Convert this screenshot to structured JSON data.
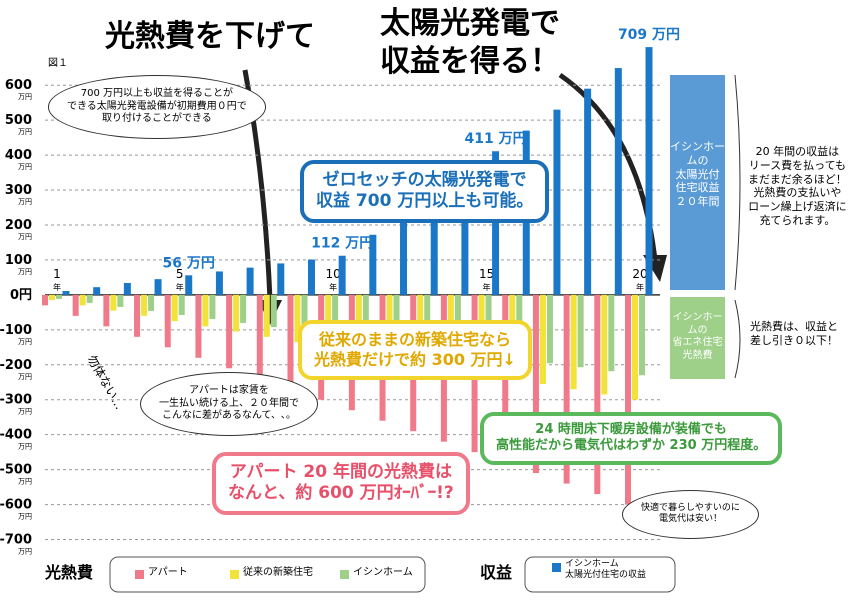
{
  "chart_data": {
    "type": "bar",
    "figure_label": "図１",
    "categories": [
      "1",
      null,
      null,
      null,
      "5",
      null,
      null,
      null,
      null,
      "10",
      null,
      null,
      null,
      null,
      "15",
      null,
      null,
      null,
      null,
      "20"
    ],
    "x_unit": "年",
    "y_unit": "万円",
    "series": [
      {
        "name": "アパート",
        "color": "#f07a8a",
        "values": [
          -30,
          -60,
          -90,
          -120,
          -150,
          -180,
          -210,
          -240,
          -270,
          -300,
          -330,
          -360,
          -390,
          -420,
          -450,
          -480,
          -510,
          -540,
          -570,
          -600
        ]
      },
      {
        "name": "従来の新築住宅",
        "color": "#f2e33a",
        "values": [
          -15,
          -30,
          -45,
          -60,
          -75,
          -90,
          -105,
          -120,
          -135,
          -150,
          -165,
          -180,
          -195,
          -210,
          -225,
          -240,
          -255,
          -270,
          -285,
          -300
        ]
      },
      {
        "name": "イシンホーム",
        "color": "#9fd08a",
        "values": [
          -11.5,
          -23,
          -34.5,
          -46,
          -57.5,
          -69,
          -80.5,
          -92,
          -103.5,
          -115,
          -126.5,
          -138,
          -149.5,
          -161,
          -172.5,
          -184,
          -195.5,
          -207,
          -218.5,
          -230
        ]
      },
      {
        "name": "イシンホーム\n太陽光付住宅の収益",
        "color": "#1b78c8",
        "values": [
          11,
          22,
          34,
          45,
          56,
          67,
          78,
          90,
          101,
          112,
          172,
          231,
          291,
          351,
          411,
          470,
          530,
          590,
          649,
          709
        ],
        "value_labels": [
          null,
          null,
          null,
          null,
          "56 万円",
          null,
          null,
          null,
          null,
          "112 万円",
          null,
          null,
          null,
          null,
          "411 万円",
          null,
          null,
          null,
          null,
          "709 万円"
        ]
      }
    ],
    "ylim": [
      -730,
      715
    ],
    "yticks": [
      -700,
      -600,
      -500,
      -400,
      -300,
      -200,
      -100,
      {
        "value": 0,
        "label": "0円"
      },
      100,
      200,
      300,
      400,
      500,
      600
    ],
    "grid": true,
    "legend_groups": {
      "cost": "光熱費",
      "revenue": "収益"
    },
    "annotations": {
      "headline1": "光熱費を下げて",
      "headline2": "太陽光発電で\n収益を得る！",
      "bubble_teacher": "700 万円以上も収益を得ることが\nできる太陽光発電設備が初期費用０円で\n取り付けることができる",
      "callout_blue": "ゼロセッチの太陽光発電で\n収益 700 万円以上も可能。",
      "callout_yellow": "従来のままの新築住宅なら\n光熱費だけで約 300 万円↓",
      "callout_green": "24 時間床下暖房設備が装備でも\n高性能だから電気代はわずか 230 万円程度。",
      "callout_pink": "アパート 20 年間の光熱費は\nなんと、約 600 万円ｵｰﾊﾞｰ!?",
      "bubble_man": "アパートは家賃を\n一生払い続ける上、２０年間で\nこんなに差があるなんて、､。",
      "mutter": "勿体ない…",
      "bubble_right": "快適で暮らしやすいのに\n電気代は安い！",
      "box_blue": "イシンホームの\n太陽光付\n住宅収益\n２０年間",
      "box_green": "イシンホームの\n省エネ住宅\n光熱費",
      "note_top": "20 年間の収益は\nリース費を払っても\nまだまだ余るほど！\n光熱費の支払いや\nローン繰上げ返済に\n充てられます。",
      "note_bottom": "光熱費は、収益と\n差し引き０以下！"
    }
  }
}
